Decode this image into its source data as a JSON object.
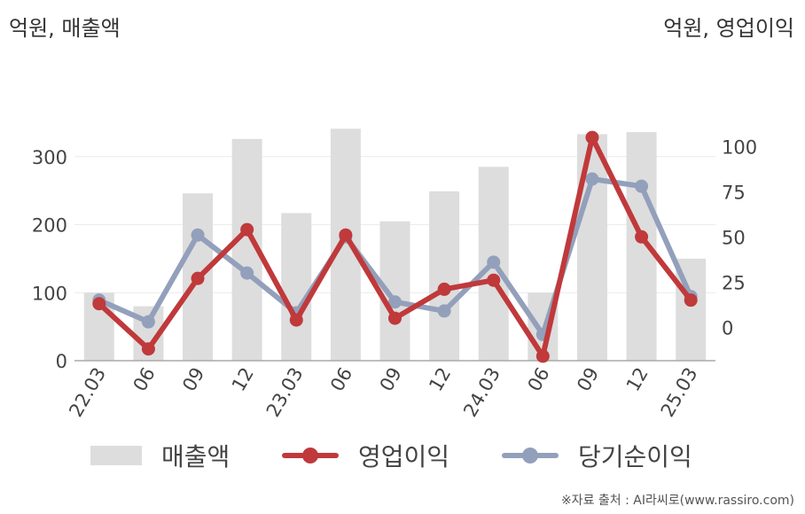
{
  "units": {
    "left": "억원, 매출액",
    "right": "억원, 영업이익"
  },
  "chart_data": {
    "type": "bar",
    "categories": [
      "22.03",
      "06",
      "09",
      "12",
      "23.03",
      "06",
      "09",
      "12",
      "24.03",
      "06",
      "09",
      "12",
      "25.03"
    ],
    "y_left": {
      "ticks": [
        0,
        100,
        200,
        300
      ],
      "range": [
        0,
        400
      ]
    },
    "y_right": {
      "ticks": [
        0,
        25,
        50,
        75,
        100
      ],
      "range": [
        -18.5,
        132
      ]
    },
    "grid": true,
    "legend_position": "bottom",
    "series": [
      {
        "name": "매출액",
        "kind": "bar",
        "axis": "left",
        "color": "#dddddd",
        "values": [
          100,
          80,
          246,
          326,
          217,
          341,
          205,
          249,
          285,
          100,
          333,
          336,
          150
        ]
      },
      {
        "name": "영업이익",
        "kind": "line",
        "axis": "right",
        "color": "#c0393b",
        "values": [
          13,
          -12,
          27,
          54,
          4,
          51,
          5,
          21,
          26,
          -16,
          105,
          50,
          15
        ]
      },
      {
        "name": "당기순이익",
        "kind": "line",
        "axis": "right",
        "color": "#93a0bb",
        "values": [
          15,
          3,
          51,
          30,
          8,
          50,
          14,
          9,
          36,
          -4,
          82,
          78,
          17
        ]
      }
    ]
  },
  "legend": {
    "sales": "매출액",
    "operating": "영업이익",
    "net": "당기순이익"
  },
  "source": "※자료 출처 : AI라씨로(www.rassiro.com)"
}
